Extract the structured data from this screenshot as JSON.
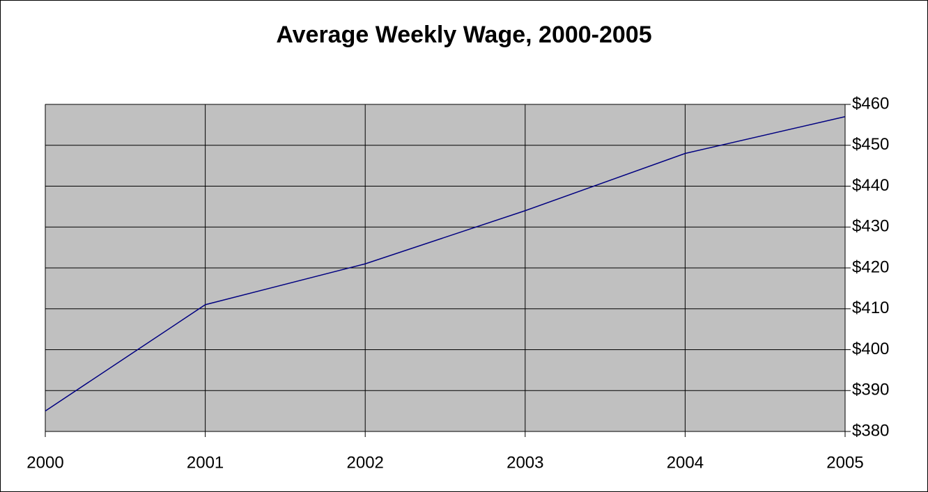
{
  "chart_data": {
    "type": "line",
    "title": "Average Weekly Wage, 2000-2005",
    "categories": [
      "2000",
      "2001",
      "2002",
      "2003",
      "2004",
      "2005"
    ],
    "values": [
      385,
      411,
      421,
      434,
      448,
      457
    ],
    "color": "#000080",
    "ylim": [
      380,
      460
    ],
    "yticks": [
      {
        "value": 380,
        "label": "$380"
      },
      {
        "value": 390,
        "label": "$390"
      },
      {
        "value": 400,
        "label": "$400"
      },
      {
        "value": 410,
        "label": "$410"
      },
      {
        "value": 420,
        "label": "$420"
      },
      {
        "value": 430,
        "label": "$430"
      },
      {
        "value": 440,
        "label": "$440"
      },
      {
        "value": 450,
        "label": "$450"
      },
      {
        "value": 460,
        "label": "$460"
      }
    ],
    "grid": true
  }
}
